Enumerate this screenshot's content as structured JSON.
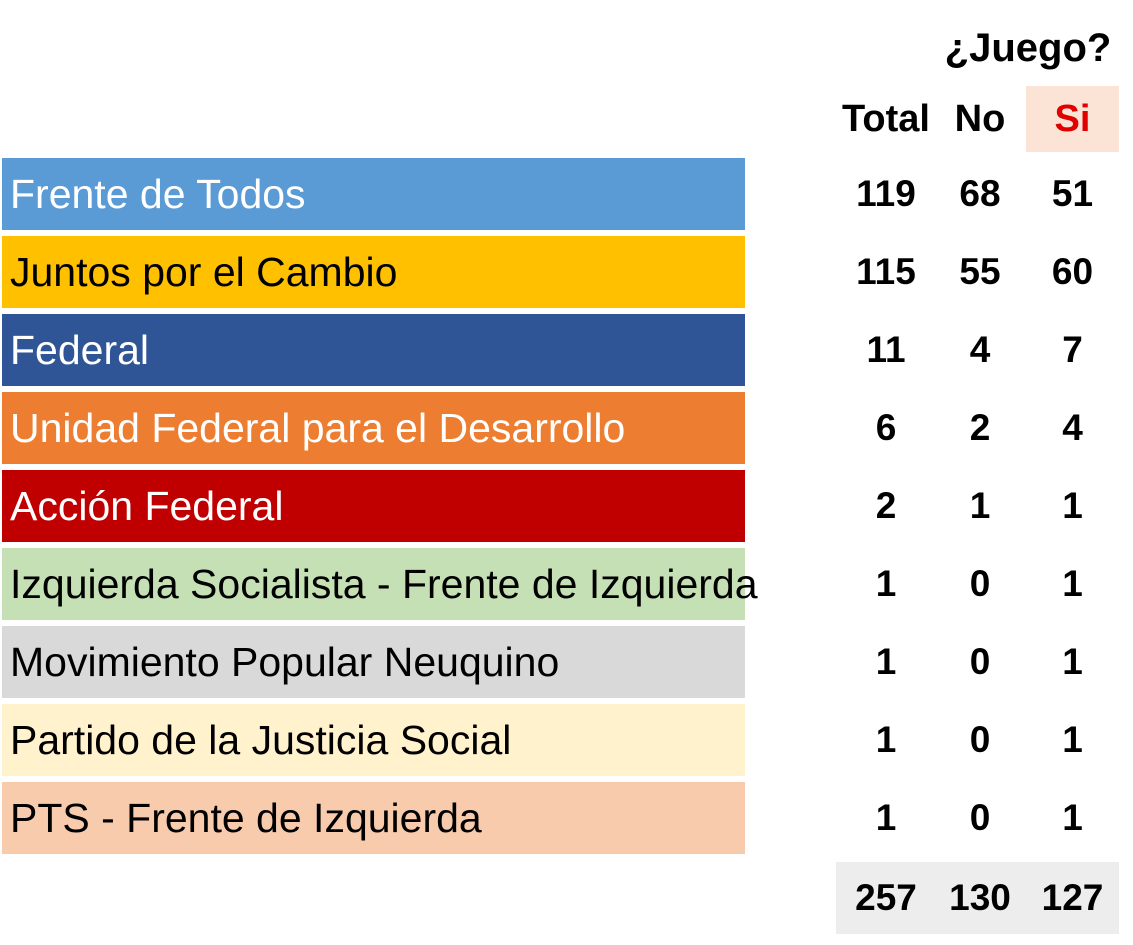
{
  "header": {
    "title": "¿Juego?",
    "columns": {
      "total": "Total",
      "no": "No",
      "si": "Si"
    },
    "si_color": "#e00000",
    "si_bg": "#fbe3d6"
  },
  "chart_data": {
    "type": "table",
    "title": "¿Juego?",
    "columns": [
      "Total",
      "No",
      "Si"
    ],
    "rows": [
      {
        "party": "Frente de Todos",
        "color": "#5b9bd5",
        "text_color": "#ffffff",
        "total": "119",
        "no": "68",
        "si": "51"
      },
      {
        "party": "Juntos por el Cambio",
        "color": "#ffc000",
        "text_color": "#000000",
        "total": "115",
        "no": "55",
        "si": "60"
      },
      {
        "party": "Federal",
        "color": "#2f5597",
        "text_color": "#ffffff",
        "total": "11",
        "no": "4",
        "si": "7"
      },
      {
        "party": "Unidad Federal para el Desarrollo",
        "color": "#ed7d31",
        "text_color": "#ffffff",
        "total": "6",
        "no": "2",
        "si": "4"
      },
      {
        "party": "Acción Federal",
        "color": "#c00000",
        "text_color": "#ffffff",
        "total": "2",
        "no": "1",
        "si": "1"
      },
      {
        "party": "Izquierda Socialista - Frente de Izquierda",
        "color": "#c5e0b4",
        "text_color": "#000000",
        "total": "1",
        "no": "0",
        "si": "1"
      },
      {
        "party": "Movimiento Popular Neuquino",
        "color": "#d9d9d9",
        "text_color": "#000000",
        "total": "1",
        "no": "0",
        "si": "1"
      },
      {
        "party": "Partido de la Justicia Social",
        "color": "#fff2cc",
        "text_color": "#000000",
        "total": "1",
        "no": "0",
        "si": "1"
      },
      {
        "party": "PTS - Frente de Izquierda",
        "color": "#f8cbad",
        "text_color": "#000000",
        "total": "1",
        "no": "0",
        "si": "1"
      }
    ],
    "totals": {
      "total": "257",
      "no": "130",
      "si": "127"
    }
  }
}
